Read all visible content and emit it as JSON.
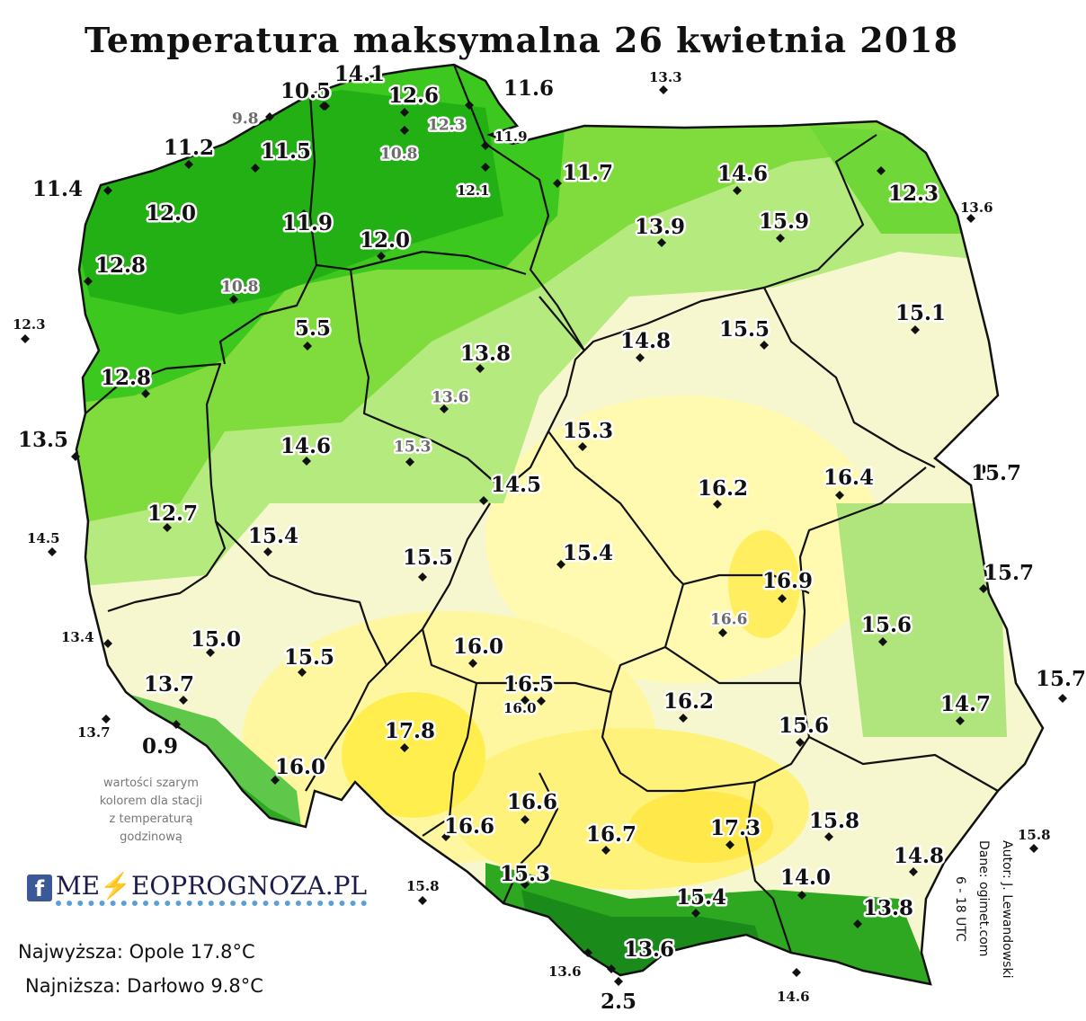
{
  "title": "Temperatura maksymalna 26 kwietnia 2018",
  "legend_note": [
    "wartości szarym",
    "kolorem dla stacji",
    "z temperaturą",
    "godzinową"
  ],
  "logo": {
    "icon": "facebook-icon",
    "text": "METEOPROGNOZA.PL",
    "display": "ME⚡EOPROGNOZA.PL"
  },
  "stats": {
    "highest": "Najwyższa: Opole 17.8°C",
    "lowest": "Najniższa: Darłowo 9.8°C"
  },
  "author": [
    "Autor: J. Lewandowski",
    "Dane: ogimet.com",
    "6 - 18 UTC"
  ],
  "colors": {
    "cool_green": "#22b014",
    "mid_green": "#7fdc3c",
    "light_green": "#c6f08a",
    "cream": "#f7f7cf",
    "yellow": "#fff7a0",
    "warm_yellow": "#ffe84a",
    "border": "#111111"
  },
  "stations": [
    {
      "v": "14.1",
      "c": "big"
    },
    {
      "v": "10.5",
      "c": "big"
    },
    {
      "v": "12.6",
      "c": "big"
    },
    {
      "v": "11.6",
      "c": "big"
    },
    {
      "v": "13.3",
      "c": "small"
    },
    {
      "v": "9.8",
      "c": "gray"
    },
    {
      "v": "12.3",
      "c": "gray"
    },
    {
      "v": "11.9",
      "c": "small"
    },
    {
      "v": "11.2",
      "c": "big"
    },
    {
      "v": "11.5",
      "c": "big"
    },
    {
      "v": "10.8",
      "c": "gray"
    },
    {
      "v": "12.1",
      "c": "small"
    },
    {
      "v": "11.7",
      "c": "big"
    },
    {
      "v": "14.6",
      "c": "big"
    },
    {
      "v": "12.3",
      "c": "big"
    },
    {
      "v": "11.4",
      "c": "big"
    },
    {
      "v": "13.6",
      "c": "small"
    },
    {
      "v": "12.0",
      "c": "big"
    },
    {
      "v": "11.9",
      "c": "big"
    },
    {
      "v": "12.0",
      "c": "big"
    },
    {
      "v": "13.9",
      "c": "big"
    },
    {
      "v": "15.9",
      "c": "big"
    },
    {
      "v": "12.8",
      "c": "big"
    },
    {
      "v": "10.8",
      "c": "gray"
    },
    {
      "v": "15.1",
      "c": "big"
    },
    {
      "v": "12.3",
      "c": "small"
    },
    {
      "v": "5.5",
      "c": "big"
    },
    {
      "v": "13.8",
      "c": "big"
    },
    {
      "v": "14.8",
      "c": "big"
    },
    {
      "v": "15.5",
      "c": "big"
    },
    {
      "v": "12.8",
      "c": "big"
    },
    {
      "v": "13.6",
      "c": "gray"
    },
    {
      "v": "13.5",
      "c": "big"
    },
    {
      "v": "14.6",
      "c": "big"
    },
    {
      "v": "15.3",
      "c": "gray"
    },
    {
      "v": "15.3",
      "c": "big"
    },
    {
      "v": "15.7",
      "c": "big"
    },
    {
      "v": "16.4",
      "c": "big"
    },
    {
      "v": "14.5",
      "c": "big"
    },
    {
      "v": "16.2",
      "c": "big"
    },
    {
      "v": "12.7",
      "c": "big"
    },
    {
      "v": "14.5",
      "c": "small"
    },
    {
      "v": "15.4",
      "c": "big"
    },
    {
      "v": "15.5",
      "c": "big"
    },
    {
      "v": "15.4",
      "c": "big"
    },
    {
      "v": "15.7",
      "c": "big"
    },
    {
      "v": "16.9",
      "c": "big"
    },
    {
      "v": "16.6",
      "c": "gray"
    },
    {
      "v": "15.6",
      "c": "big"
    },
    {
      "v": "13.4",
      "c": "small"
    },
    {
      "v": "15.0",
      "c": "big"
    },
    {
      "v": "15.5",
      "c": "big"
    },
    {
      "v": "16.0",
      "c": "big"
    },
    {
      "v": "15.7",
      "c": "big"
    },
    {
      "v": "13.7",
      "c": "big"
    },
    {
      "v": "16.0",
      "c": "small"
    },
    {
      "v": "14.7",
      "c": "big"
    },
    {
      "v": "16.5",
      "c": "big"
    },
    {
      "v": "16.2",
      "c": "big"
    },
    {
      "v": "13.7",
      "c": "small"
    },
    {
      "v": "0.9",
      "c": "big"
    },
    {
      "v": "17.8",
      "c": "big"
    },
    {
      "v": "15.6",
      "c": "big"
    },
    {
      "v": "16.0",
      "c": "big"
    },
    {
      "v": "16.6",
      "c": "big"
    },
    {
      "v": "15.8",
      "c": "big"
    },
    {
      "v": "16.6",
      "c": "big"
    },
    {
      "v": "16.7",
      "c": "big"
    },
    {
      "v": "17.3",
      "c": "big"
    },
    {
      "v": "15.8",
      "c": "small"
    },
    {
      "v": "14.8",
      "c": "big"
    },
    {
      "v": "15.8",
      "c": "small"
    },
    {
      "v": "15.3",
      "c": "big"
    },
    {
      "v": "14.0",
      "c": "big"
    },
    {
      "v": "15.4",
      "c": "big"
    },
    {
      "v": "13.8",
      "c": "big"
    },
    {
      "v": "13.6",
      "c": "big"
    },
    {
      "v": "13.6",
      "c": "small"
    },
    {
      "v": "2.5",
      "c": "big"
    },
    {
      "v": "14.6",
      "c": "small"
    }
  ]
}
